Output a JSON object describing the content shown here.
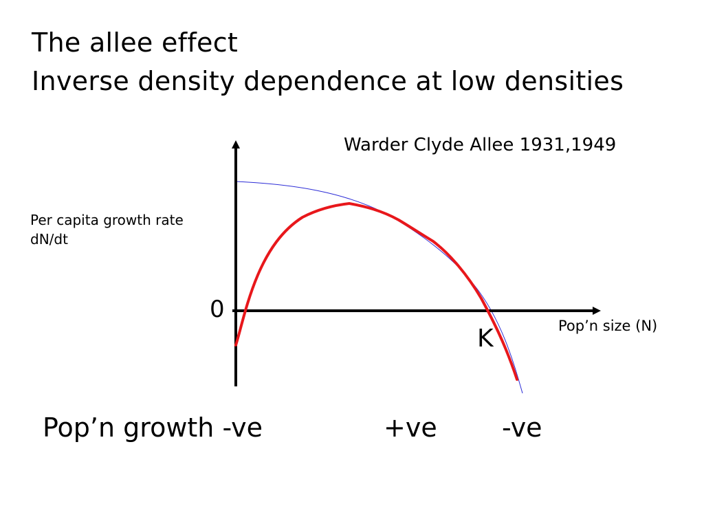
{
  "title": {
    "line1": "The allee effect",
    "line2": "Inverse density dependence at low densities"
  },
  "attribution": "Warder Clyde Allee 1931,1949",
  "axes": {
    "y_label_line1": "Per capita growth rate",
    "y_label_line2": "dN/dt",
    "x_label": "Pop’n size (N)",
    "zero_label": "0",
    "k_label": "K"
  },
  "growth_row": {
    "label": "Pop’n growth -ve",
    "middle": "+ve",
    "right": "-ve"
  },
  "colors": {
    "allee_curve": "#e8171b",
    "logistic_curve": "#2b2bd6",
    "axes": "#000000"
  }
}
